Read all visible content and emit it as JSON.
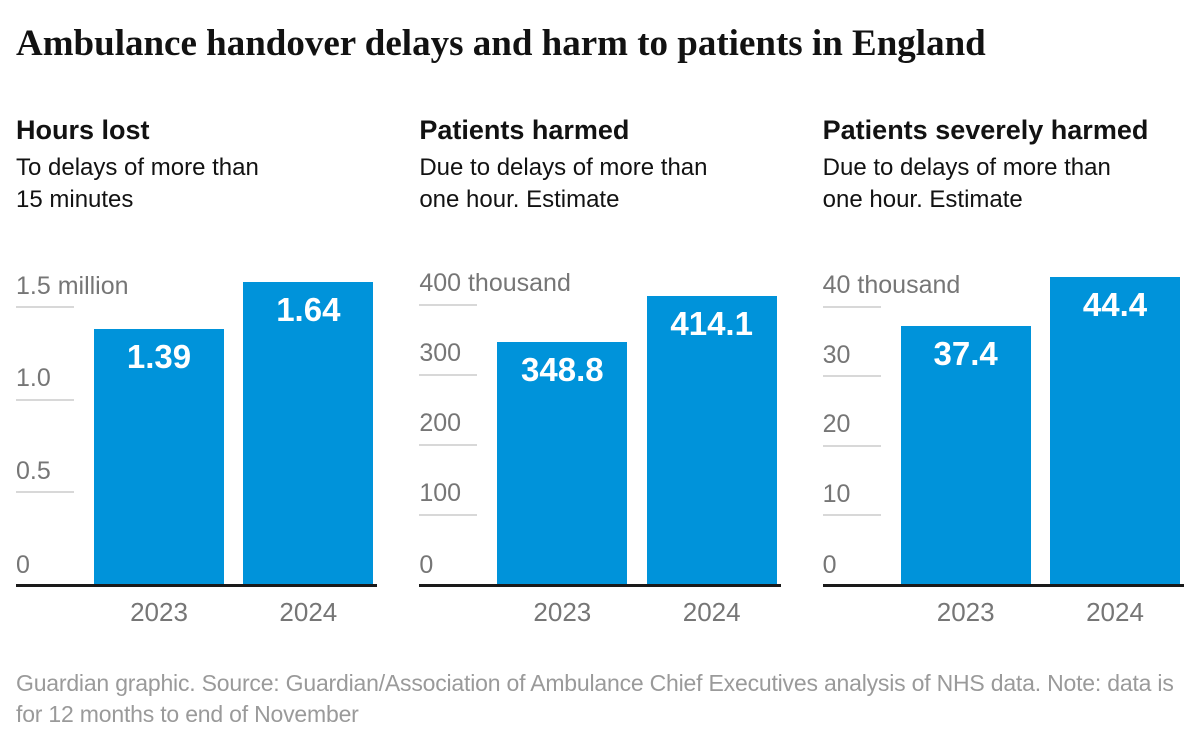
{
  "page": {
    "title": "Ambulance handover delays and harm to patients in England",
    "footer": "Guardian graphic. Source: Guardian/Association of Ambulance Chief Executives analysis of NHS data. Note: data is\nfor 12 months to end of November"
  },
  "colors": {
    "bar": "#0093da",
    "heading_text": "#121212",
    "axis_text": "#767676",
    "gridline": "#d8d8d8",
    "baseline": "#1a1a1a",
    "footer_text": "#9a9a9a",
    "bar_value_text": "#ffffff"
  },
  "chart_data": [
    {
      "type": "bar",
      "title": "Hours lost",
      "subtitle": "To delays of more than\n15 minutes",
      "unit": "million hours",
      "categories": [
        "2023",
        "2024"
      ],
      "values": [
        1.39,
        1.64
      ],
      "value_labels": [
        "1.39",
        "1.64"
      ],
      "ylim": [
        0,
        1.74
      ],
      "grid": "short-tick-stubs",
      "legend": "none",
      "ticks": [
        {
          "value": 1.5,
          "label": "1.5 million"
        },
        {
          "value": 1.0,
          "label": "1.0"
        },
        {
          "value": 0.5,
          "label": "0.5"
        },
        {
          "value": 0,
          "label": "0"
        }
      ]
    },
    {
      "type": "bar",
      "title": "Patients harmed",
      "subtitle": "Due to delays of more than\none hour. Estimate",
      "unit": "thousand patients",
      "categories": [
        "2023",
        "2024"
      ],
      "values": [
        348.8,
        414.1
      ],
      "value_labels": [
        "348.8",
        "414.1"
      ],
      "ylim": [
        0,
        460
      ],
      "grid": "short-tick-stubs",
      "legend": "none",
      "ticks": [
        {
          "value": 400,
          "label": "400 thousand"
        },
        {
          "value": 300,
          "label": "300"
        },
        {
          "value": 200,
          "label": "200"
        },
        {
          "value": 100,
          "label": "100"
        },
        {
          "value": 0,
          "label": "0"
        }
      ]
    },
    {
      "type": "bar",
      "title": "Patients severely harmed",
      "subtitle": "Due to delays of more than\none hour. Estimate",
      "unit": "thousand patients",
      "categories": [
        "2023",
        "2024"
      ],
      "values": [
        37.4,
        44.4
      ],
      "value_labels": [
        "37.4",
        "44.4"
      ],
      "ylim": [
        0,
        46.3
      ],
      "grid": "short-tick-stubs",
      "legend": "none",
      "ticks": [
        {
          "value": 40,
          "label": "40 thousand"
        },
        {
          "value": 30,
          "label": "30"
        },
        {
          "value": 20,
          "label": "20"
        },
        {
          "value": 10,
          "label": "10"
        },
        {
          "value": 0,
          "label": "0"
        }
      ]
    }
  ]
}
